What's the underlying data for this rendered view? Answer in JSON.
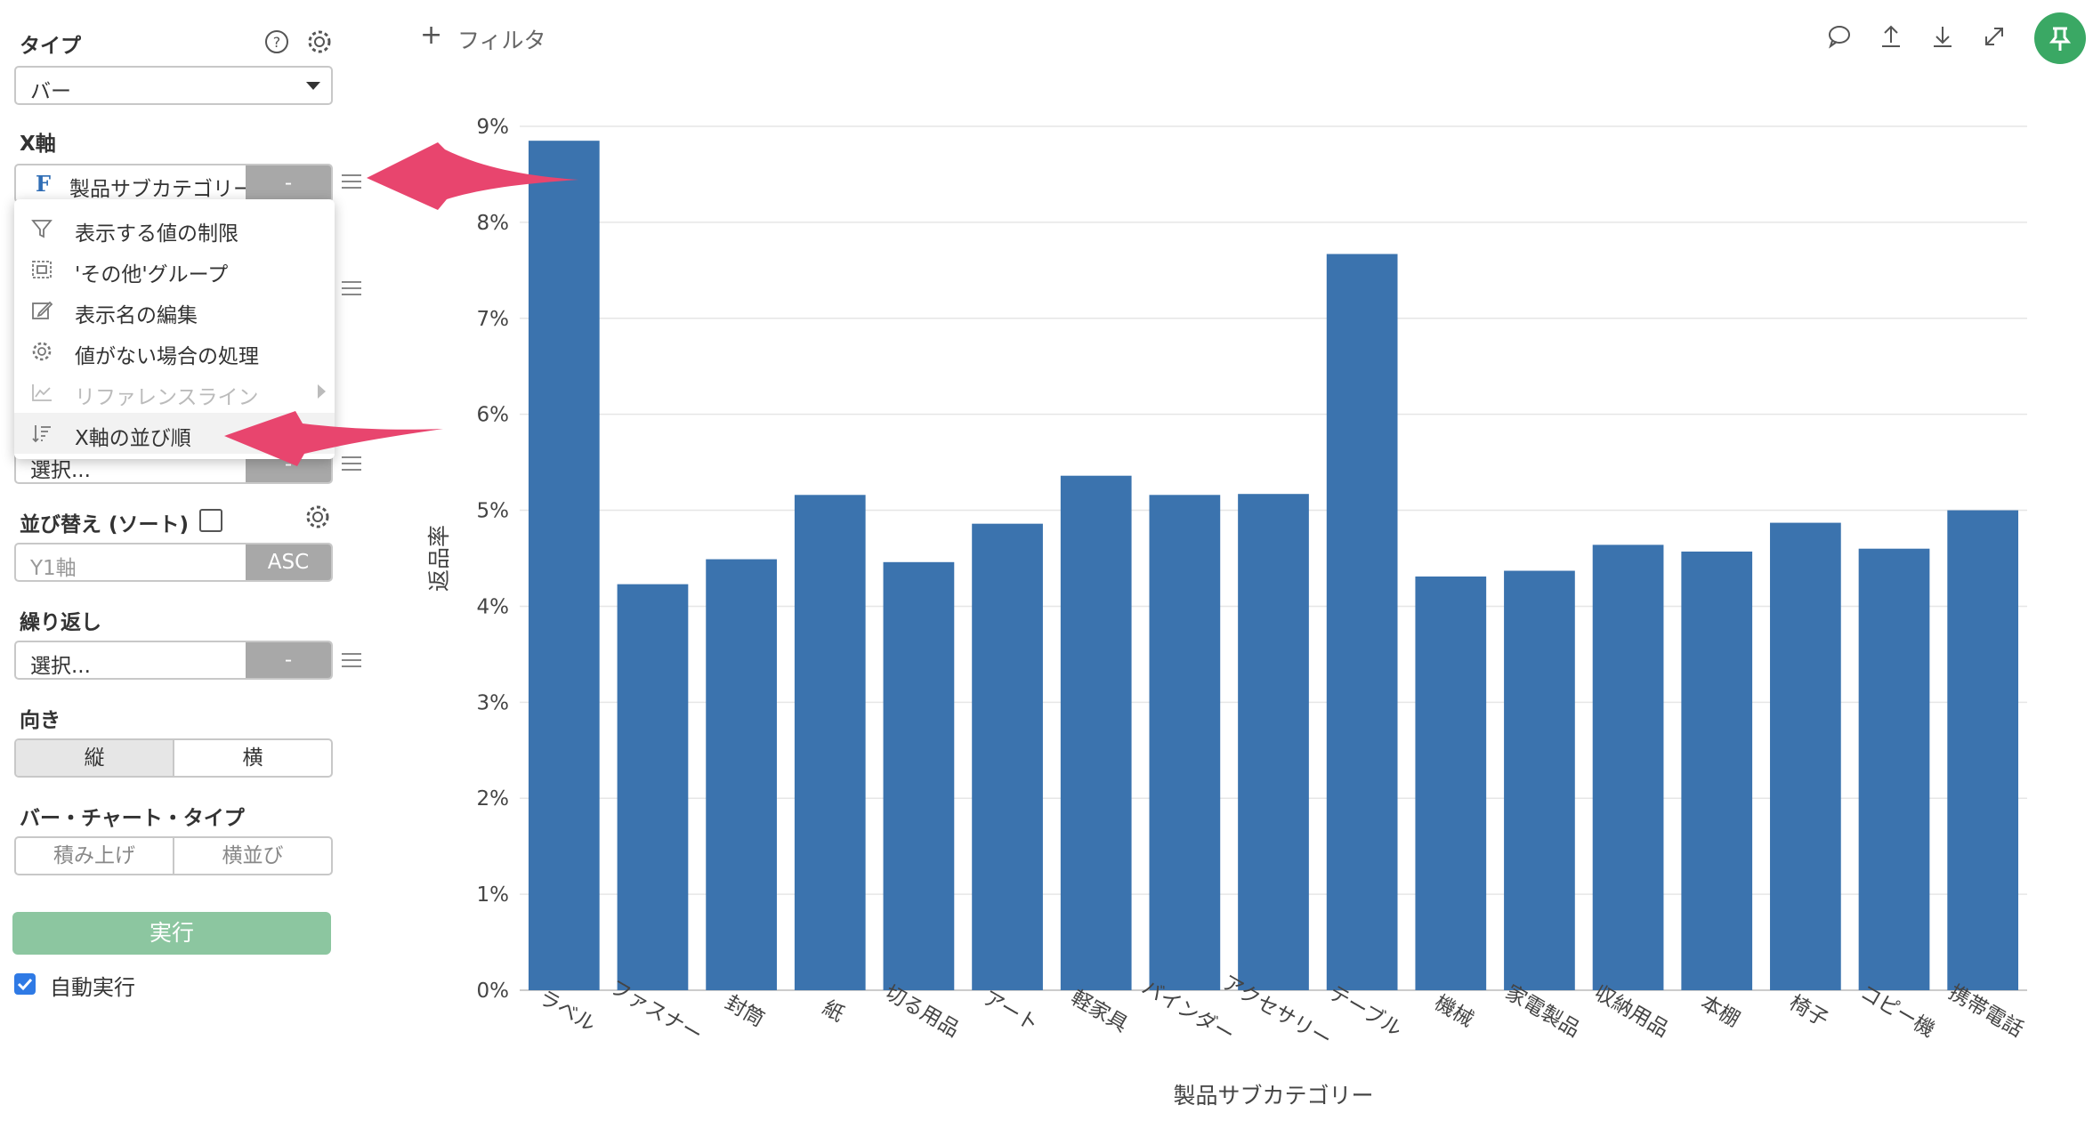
{
  "filter_label": "フィルタ",
  "sidebar": {
    "type_label": "タイプ",
    "type_value": "バー",
    "xaxis_label": "X軸",
    "xaxis_field": "製品サブカテゴリー",
    "xaxis_field_badge": "F",
    "xaxis_button": "-",
    "hidden_field_value": "選択...",
    "hidden_field_button": "-",
    "sort_label": "並び替え (ソート)",
    "sort_field_placeholder": "Y1軸",
    "sort_order": "ASC",
    "repeat_label": "繰り返し",
    "repeat_value": "選択...",
    "repeat_button": "-",
    "orientation_label": "向き",
    "orientation_options": [
      "縦",
      "横"
    ],
    "bar_type_label": "バー・チャート・タイプ",
    "bar_type_options": [
      "積み上げ",
      "横並び"
    ],
    "run_label": "実行",
    "auto_run_label": "自動実行"
  },
  "dropdown": {
    "items": [
      {
        "label": "表示する値の制限",
        "icon": "filter-icon",
        "disabled": false
      },
      {
        "label": "'その他'グループ",
        "icon": "group-icon",
        "disabled": false
      },
      {
        "label": "表示名の編集",
        "icon": "edit-icon",
        "disabled": false
      },
      {
        "label": "値がない場合の処理",
        "icon": "gear-icon",
        "disabled": false
      },
      {
        "label": "リファレンスライン",
        "icon": "trend-icon",
        "disabled": true
      },
      {
        "label": "X軸の並び順",
        "icon": "sort-icon",
        "disabled": false
      }
    ]
  },
  "colors": {
    "bar": "#3b73ae",
    "arrow": "#e8456e",
    "run_button": "#8cc6a0",
    "pin_button": "#3aa864",
    "checkbox": "#2f7ae5"
  },
  "chart_data": {
    "type": "bar",
    "categories": [
      "ラベル",
      "ファスナー",
      "封筒",
      "紙",
      "切る用品",
      "アート",
      "軽家具",
      "バインダー",
      "アクセサリー",
      "テーブル",
      "機械",
      "家電製品",
      "収納用品",
      "本棚",
      "椅子",
      "コピー機",
      "携帯電話"
    ],
    "values": [
      8.85,
      4.23,
      4.49,
      5.16,
      4.46,
      4.86,
      5.36,
      5.16,
      5.17,
      7.67,
      4.31,
      4.37,
      4.64,
      4.57,
      4.87,
      4.6,
      5.0
    ],
    "y_ticks": [
      "0%",
      "1%",
      "2%",
      "3%",
      "4%",
      "5%",
      "6%",
      "7%",
      "8%",
      "9%"
    ],
    "ylim": [
      0,
      9
    ],
    "xlabel": "製品サブカテゴリー",
    "ylabel": "返品率",
    "grid": true
  }
}
